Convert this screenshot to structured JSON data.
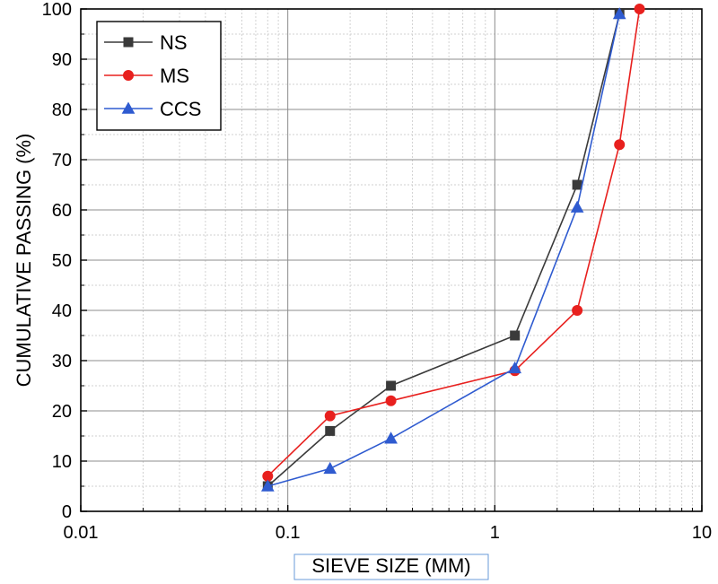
{
  "chart_data": {
    "type": "line",
    "title": "",
    "xlabel": "SIEVE SIZE (MM)",
    "ylabel": "CUMULATIVE PASSING (%)",
    "x_scale": "log",
    "xlim": [
      0.01,
      10
    ],
    "ylim": [
      0,
      100
    ],
    "x_ticks": [
      0.01,
      0.1,
      1,
      10
    ],
    "x_tick_labels": [
      "0.01",
      "0.1",
      "1",
      "10"
    ],
    "y_ticks": [
      0,
      10,
      20,
      30,
      40,
      50,
      60,
      70,
      80,
      90,
      100
    ],
    "y_tick_labels": [
      "0",
      "10",
      "20",
      "30",
      "40",
      "50",
      "60",
      "70",
      "80",
      "90",
      "100"
    ],
    "grid": true,
    "legend_position": "top-left",
    "series": [
      {
        "name": "NS",
        "color": "#3a3a3a",
        "marker": "square",
        "x": [
          0.08,
          0.16,
          0.315,
          1.25,
          2.5,
          4
        ],
        "y": [
          5,
          16,
          25,
          35,
          65,
          99
        ]
      },
      {
        "name": "MS",
        "color": "#e8201e",
        "marker": "circle",
        "x": [
          0.08,
          0.16,
          0.315,
          1.25,
          2.5,
          4,
          5
        ],
        "y": [
          7,
          19,
          22,
          28,
          40,
          73,
          100
        ]
      },
      {
        "name": "CCS",
        "color": "#2f5bd0",
        "marker": "triangle",
        "x": [
          0.08,
          0.16,
          0.315,
          1.25,
          2.5,
          4
        ],
        "y": [
          5,
          8.5,
          14.5,
          28.5,
          60.5,
          99
        ]
      }
    ]
  }
}
